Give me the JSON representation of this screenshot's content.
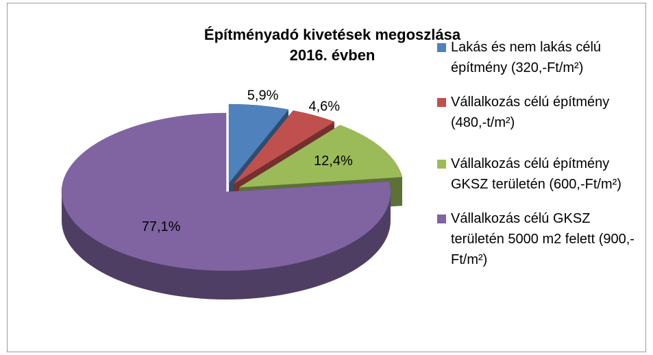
{
  "chart_data": {
    "type": "pie3d",
    "title": "Építményadó kivetések megoszlása 2016. évben",
    "categories": [
      "Lakás és nem lakás célú építmény (320,-Ft/m²)",
      "Vállalkozás célú építmény (480,-t/m²)",
      "Vállalkozás célú építmény GKSZ területén (600,-Ft/m²)",
      "Vállalkozás célú GKSZ területén 5000 m2 felett (900,-Ft/m²)"
    ],
    "values": [
      5.9,
      4.6,
      12.4,
      77.1
    ],
    "value_labels": [
      "5,9%",
      "4,6%",
      "12,4%",
      "77,1%"
    ],
    "colors": [
      "#4f81bd",
      "#c0504d",
      "#9bbb59",
      "#8064a2"
    ],
    "legend": "right"
  }
}
